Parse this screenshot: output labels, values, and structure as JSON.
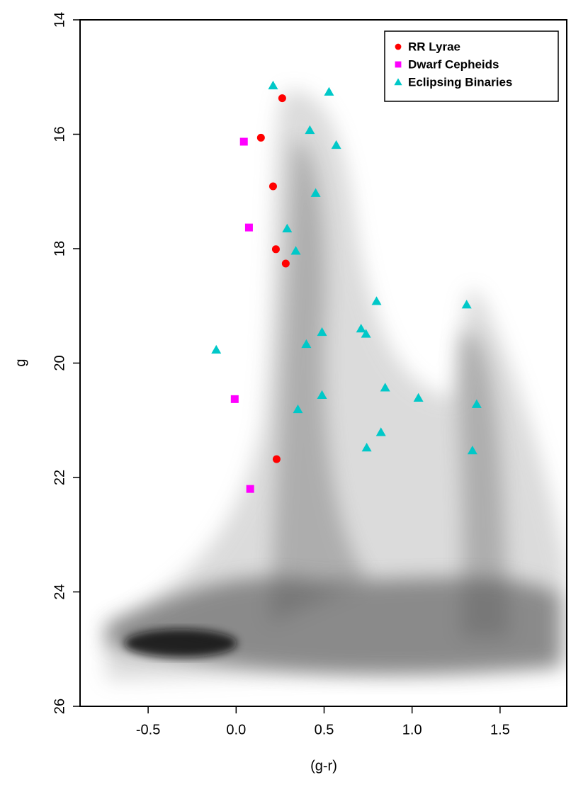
{
  "chart_data": {
    "type": "scatter",
    "xlabel": "(g-r)",
    "ylabel": "g",
    "xlim": [
      -0.887,
      1.879
    ],
    "ylim": [
      26,
      14
    ],
    "y_inverted": true,
    "xticks": [
      -0.5,
      {
        "value": 0,
        "label": "0.0"
      },
      0.5,
      {
        "value": 1,
        "label": "1.0"
      },
      1.5
    ],
    "yticks": [
      14,
      16,
      18,
      20,
      22,
      24,
      26
    ],
    "legend": "topright",
    "series": [
      {
        "name": "RR Lyrae",
        "color": "#ff0000",
        "marker": "circle",
        "x": [
          0.262,
          0.141,
          0.21,
          0.226,
          0.282,
          0.23
        ],
        "values": [
          15.37,
          16.06,
          16.91,
          18.01,
          18.26,
          21.68
        ]
      },
      {
        "name": "Dwarf Cepheids",
        "color": "#ff00ff",
        "marker": "square",
        "x": [
          0.044,
          0.073,
          -0.008,
          0.08
        ],
        "values": [
          16.13,
          17.63,
          20.63,
          22.2
        ]
      },
      {
        "name": "Eclipsing Binaries",
        "color": "#00c8c8",
        "marker": "triangle",
        "x": [
          0.21,
          0.528,
          0.419,
          0.569,
          0.452,
          0.29,
          0.339,
          0.798,
          1.31,
          0.71,
          0.738,
          0.488,
          0.399,
          -0.113,
          0.847,
          0.488,
          1.036,
          1.367,
          0.351,
          0.823,
          0.742,
          1.343
        ],
        "values": [
          15.15,
          15.26,
          15.93,
          16.19,
          17.03,
          17.65,
          18.04,
          18.92,
          18.98,
          19.4,
          19.49,
          19.46,
          19.67,
          19.77,
          20.43,
          20.56,
          20.61,
          20.72,
          20.81,
          21.21,
          21.48,
          21.53
        ]
      }
    ]
  }
}
